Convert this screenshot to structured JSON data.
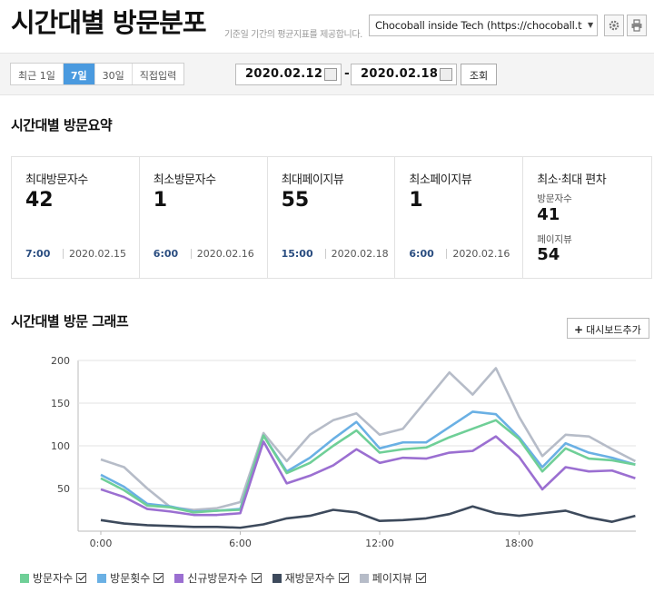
{
  "header": {
    "title": "시간대별 방문분포",
    "subtitle": "기준일 기간의 평균지표를 제공합니다.",
    "site_select": "Chocoball inside Tech (https://chocoball.t"
  },
  "toolbar": {
    "periods": [
      {
        "label": "최근 1일",
        "active": false
      },
      {
        "label": "7일",
        "active": true
      },
      {
        "label": "30일",
        "active": false
      },
      {
        "label": "직접입력",
        "active": false
      }
    ],
    "start_date": "2020.02.12",
    "separator": "-",
    "end_date": "2020.02.18",
    "query_label": "조회"
  },
  "summary": {
    "title": "시간대별 방문요약",
    "cards": [
      {
        "label": "최대방문자수",
        "value": "42",
        "time": "7:00",
        "date": "2020.02.15"
      },
      {
        "label": "최소방문자수",
        "value": "1",
        "time": "6:00",
        "date": "2020.02.16"
      },
      {
        "label": "최대페이지뷰",
        "value": "55",
        "time": "15:00",
        "date": "2020.02.18"
      },
      {
        "label": "최소페이지뷰",
        "value": "1",
        "time": "6:00",
        "date": "2020.02.16"
      }
    ],
    "deviation": {
      "label": "최소·최대 편차",
      "visitors_label": "방문자수",
      "visitors_value": "41",
      "pageviews_label": "페이지뷰",
      "pageviews_value": "54"
    }
  },
  "graph": {
    "title": "시간대별 방문 그래프",
    "add_dashboard_label": "대시보드추가",
    "add_icon": "plus-icon"
  },
  "chart_data": {
    "type": "line",
    "x": [
      0,
      1,
      2,
      3,
      4,
      5,
      6,
      7,
      8,
      9,
      10,
      11,
      12,
      13,
      14,
      15,
      16,
      17,
      18,
      19,
      20,
      21,
      22,
      23
    ],
    "x_tick_labels": [
      {
        "x": 0,
        "label": "0:00"
      },
      {
        "x": 6,
        "label": "6:00"
      },
      {
        "x": 12,
        "label": "12:00"
      },
      {
        "x": 18,
        "label": "18:00"
      }
    ],
    "y_ticks": [
      50,
      100,
      150,
      200
    ],
    "ylim": [
      0,
      200
    ],
    "grid": true,
    "legend_position": "bottom-left",
    "series": [
      {
        "name": "방문자수",
        "color": "#6fcf97",
        "values": [
          62,
          48,
          30,
          28,
          22,
          24,
          25,
          112,
          68,
          80,
          100,
          118,
          92,
          96,
          98,
          110,
          120,
          130,
          108,
          70,
          97,
          85,
          83,
          78
        ]
      },
      {
        "name": "방문횟수",
        "color": "#6ab0e4",
        "values": [
          66,
          52,
          32,
          29,
          23,
          24,
          26,
          112,
          70,
          86,
          108,
          128,
          97,
          104,
          104,
          122,
          140,
          137,
          110,
          75,
          103,
          92,
          86,
          78
        ]
      },
      {
        "name": "신규방문자수",
        "color": "#9b6fd1",
        "values": [
          49,
          40,
          26,
          23,
          19,
          19,
          21,
          105,
          56,
          65,
          77,
          96,
          80,
          86,
          85,
          92,
          94,
          111,
          87,
          49,
          75,
          70,
          71,
          62
        ]
      },
      {
        "name": "재방문자수",
        "color": "#3d4a5c",
        "values": [
          13,
          9,
          7,
          6,
          5,
          5,
          4,
          8,
          15,
          18,
          25,
          22,
          12,
          13,
          15,
          20,
          29,
          21,
          18,
          21,
          24,
          16,
          11,
          18
        ]
      },
      {
        "name": "페이지뷰",
        "color": "#b6bcc8",
        "values": [
          84,
          75,
          50,
          28,
          25,
          27,
          34,
          115,
          82,
          113,
          130,
          138,
          113,
          120,
          153,
          186,
          160,
          191,
          134,
          88,
          113,
          111,
          96,
          82
        ]
      }
    ]
  }
}
